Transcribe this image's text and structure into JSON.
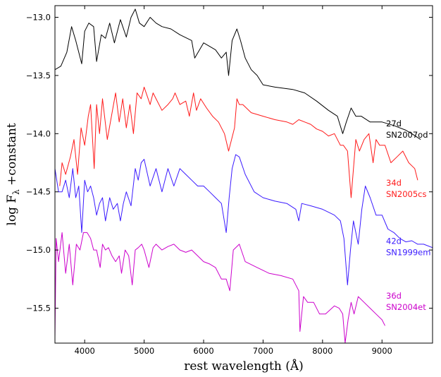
{
  "chart_data": {
    "type": "line",
    "title": "",
    "xlabel": "rest wavelength (Å)",
    "ylabel_parts": {
      "base": "log F",
      "subscript": "λ",
      "suffix": " +constant"
    },
    "xlim": [
      3500,
      9850
    ],
    "ylim": [
      -15.8,
      -12.9
    ],
    "xticks": [
      4000,
      5000,
      6000,
      7000,
      8000,
      9000
    ],
    "yticks": [
      -13.0,
      -13.5,
      -14.0,
      -14.5,
      -15.0,
      -15.5
    ],
    "xtick_labels": [
      "4000",
      "5000",
      "6000",
      "7000",
      "8000",
      "9000"
    ],
    "ytick_labels": [
      "−13.0",
      "−13.5",
      "−14.0",
      "−14.5",
      "−15.0",
      "−15.5"
    ],
    "series": [
      {
        "name": "SN2007od",
        "epoch": "27d",
        "color": "#000000",
        "x": [
          3500,
          3600,
          3700,
          3780,
          3850,
          3950,
          4000,
          4070,
          4150,
          4200,
          4280,
          4350,
          4420,
          4500,
          4600,
          4700,
          4780,
          4850,
          4920,
          5000,
          5100,
          5200,
          5300,
          5450,
          5600,
          5800,
          5850,
          6000,
          6200,
          6300,
          6380,
          6420,
          6480,
          6560,
          6620,
          6700,
          6800,
          6900,
          7000,
          7200,
          7500,
          7700,
          7900,
          8100,
          8250,
          8340,
          8400,
          8480,
          8560,
          8650,
          8800,
          9000,
          9200,
          9400,
          9500,
          9650
        ],
        "y": [
          -13.45,
          -13.42,
          -13.3,
          -13.08,
          -13.2,
          -13.4,
          -13.12,
          -13.05,
          -13.08,
          -13.38,
          -13.15,
          -13.18,
          -13.05,
          -13.22,
          -13.02,
          -13.17,
          -13.0,
          -12.93,
          -13.05,
          -13.08,
          -13.0,
          -13.05,
          -13.08,
          -13.1,
          -13.15,
          -13.2,
          -13.35,
          -13.22,
          -13.28,
          -13.35,
          -13.3,
          -13.5,
          -13.2,
          -13.1,
          -13.2,
          -13.35,
          -13.45,
          -13.5,
          -13.58,
          -13.6,
          -13.62,
          -13.65,
          -13.72,
          -13.8,
          -13.85,
          -14.0,
          -13.9,
          -13.78,
          -13.85,
          -13.85,
          -13.9,
          -13.9,
          -13.93,
          -13.97,
          -14.0,
          -14.05
        ],
        "label_y": -13.98
      },
      {
        "name": "SN2005cs",
        "epoch": "34d",
        "color": "#ff1a1a",
        "x": [
          3580,
          3620,
          3680,
          3760,
          3820,
          3880,
          3940,
          4000,
          4060,
          4100,
          4160,
          4200,
          4250,
          4300,
          4380,
          4450,
          4520,
          4580,
          4640,
          4700,
          4760,
          4820,
          4880,
          4950,
          5000,
          5100,
          5150,
          5200,
          5300,
          5400,
          5480,
          5520,
          5600,
          5700,
          5760,
          5830,
          5880,
          5950,
          6050,
          6150,
          6250,
          6350,
          6420,
          6470,
          6520,
          6560,
          6600,
          6660,
          6800,
          7000,
          7200,
          7400,
          7500,
          7600,
          7700,
          7800,
          7900,
          8000,
          8100,
          8200,
          8300,
          8350,
          8420,
          8480,
          8560,
          8620,
          8700,
          8780,
          8850,
          8900,
          8960,
          9050,
          9150,
          9250,
          9350,
          9450,
          9550,
          9600
        ],
        "y": [
          -14.45,
          -14.25,
          -14.35,
          -14.2,
          -14.05,
          -14.35,
          -13.95,
          -14.1,
          -13.85,
          -13.75,
          -14.3,
          -13.75,
          -14.0,
          -13.7,
          -14.05,
          -13.85,
          -13.65,
          -13.9,
          -13.7,
          -13.95,
          -13.75,
          -14.0,
          -13.65,
          -13.7,
          -13.6,
          -13.75,
          -13.65,
          -13.7,
          -13.8,
          -13.75,
          -13.7,
          -13.65,
          -13.75,
          -13.72,
          -13.85,
          -13.65,
          -13.8,
          -13.7,
          -13.78,
          -13.85,
          -13.9,
          -14.0,
          -14.15,
          -14.05,
          -13.95,
          -13.7,
          -13.75,
          -13.75,
          -13.82,
          -13.85,
          -13.88,
          -13.9,
          -13.92,
          -13.88,
          -13.9,
          -13.92,
          -13.96,
          -13.98,
          -14.02,
          -14.0,
          -14.1,
          -14.1,
          -14.15,
          -14.55,
          -14.05,
          -14.15,
          -14.05,
          -14.0,
          -14.25,
          -14.05,
          -14.1,
          -14.1,
          -14.25,
          -14.2,
          -14.15,
          -14.25,
          -14.3,
          -14.4
        ],
        "label_y": -14.49
      },
      {
        "name": "SN1999em",
        "epoch": "42d",
        "color": "#3a1aff",
        "x": [
          3500,
          3560,
          3620,
          3680,
          3740,
          3800,
          3850,
          3900,
          3950,
          4000,
          4050,
          4100,
          4150,
          4200,
          4250,
          4300,
          4350,
          4420,
          4480,
          4550,
          4600,
          4650,
          4700,
          4780,
          4850,
          4900,
          4950,
          5000,
          5100,
          5200,
          5300,
          5400,
          5500,
          5600,
          5700,
          5800,
          5900,
          6000,
          6100,
          6200,
          6300,
          6380,
          6430,
          6480,
          6540,
          6600,
          6700,
          6850,
          7000,
          7200,
          7400,
          7550,
          7600,
          7650,
          7800,
          8000,
          8200,
          8300,
          8360,
          8420,
          8470,
          8520,
          8600,
          8660,
          8720,
          8800,
          8900,
          9000,
          9100,
          9200,
          9300,
          9400,
          9500,
          9600,
          9700,
          9850
        ],
        "y": [
          -14.3,
          -14.5,
          -14.5,
          -14.4,
          -14.55,
          -14.3,
          -14.55,
          -14.45,
          -14.85,
          -14.4,
          -14.5,
          -14.45,
          -14.55,
          -14.7,
          -14.6,
          -14.55,
          -14.75,
          -14.55,
          -14.65,
          -14.6,
          -14.75,
          -14.6,
          -14.5,
          -14.62,
          -14.3,
          -14.4,
          -14.25,
          -14.22,
          -14.45,
          -14.3,
          -14.5,
          -14.3,
          -14.45,
          -14.3,
          -14.35,
          -14.4,
          -14.45,
          -14.45,
          -14.5,
          -14.55,
          -14.6,
          -14.85,
          -14.55,
          -14.3,
          -14.18,
          -14.2,
          -14.35,
          -14.5,
          -14.55,
          -14.58,
          -14.6,
          -14.65,
          -14.75,
          -14.6,
          -14.62,
          -14.65,
          -14.7,
          -14.75,
          -14.9,
          -15.3,
          -15.0,
          -14.75,
          -14.95,
          -14.65,
          -14.45,
          -14.55,
          -14.7,
          -14.7,
          -14.82,
          -14.85,
          -14.9,
          -14.93,
          -14.92,
          -14.95,
          -14.95,
          -14.98
        ],
        "label_y": -14.99
      },
      {
        "name": "SN2004et",
        "epoch": "36d",
        "color": "#cc00cc",
        "x": [
          3500,
          3520,
          3560,
          3620,
          3680,
          3740,
          3800,
          3860,
          3920,
          3980,
          4040,
          4100,
          4150,
          4200,
          4260,
          4300,
          4350,
          4400,
          4460,
          4520,
          4580,
          4620,
          4680,
          4740,
          4800,
          4850,
          4900,
          4960,
          5000,
          5080,
          5150,
          5200,
          5300,
          5400,
          5500,
          5600,
          5700,
          5800,
          5900,
          6000,
          6100,
          6200,
          6300,
          6380,
          6440,
          6500,
          6600,
          6700,
          6900,
          7100,
          7300,
          7500,
          7600,
          7620,
          7680,
          7750,
          7850,
          7950,
          8050,
          8200,
          8280,
          8340,
          8380,
          8430,
          8480,
          8530,
          8600,
          8700,
          8800,
          8900,
          9000,
          9050
        ],
        "y": [
          -15.75,
          -14.9,
          -15.1,
          -14.85,
          -15.2,
          -14.95,
          -15.3,
          -14.95,
          -15.0,
          -14.85,
          -14.85,
          -14.9,
          -15.0,
          -15.0,
          -15.15,
          -14.95,
          -15.0,
          -14.98,
          -15.05,
          -15.1,
          -15.05,
          -15.2,
          -15.0,
          -15.05,
          -15.3,
          -15.0,
          -14.98,
          -14.95,
          -15.0,
          -15.15,
          -14.98,
          -14.95,
          -15.0,
          -14.97,
          -14.95,
          -15.0,
          -15.02,
          -15.0,
          -15.05,
          -15.1,
          -15.12,
          -15.15,
          -15.25,
          -15.25,
          -15.35,
          -15.0,
          -14.95,
          -15.1,
          -15.15,
          -15.2,
          -15.22,
          -15.25,
          -15.35,
          -15.7,
          -15.4,
          -15.45,
          -15.45,
          -15.55,
          -15.55,
          -15.48,
          -15.5,
          -15.55,
          -15.8,
          -15.6,
          -15.45,
          -15.55,
          -15.4,
          -15.45,
          -15.5,
          -15.55,
          -15.6,
          -15.65
        ],
        "label_y": -15.46
      }
    ]
  }
}
